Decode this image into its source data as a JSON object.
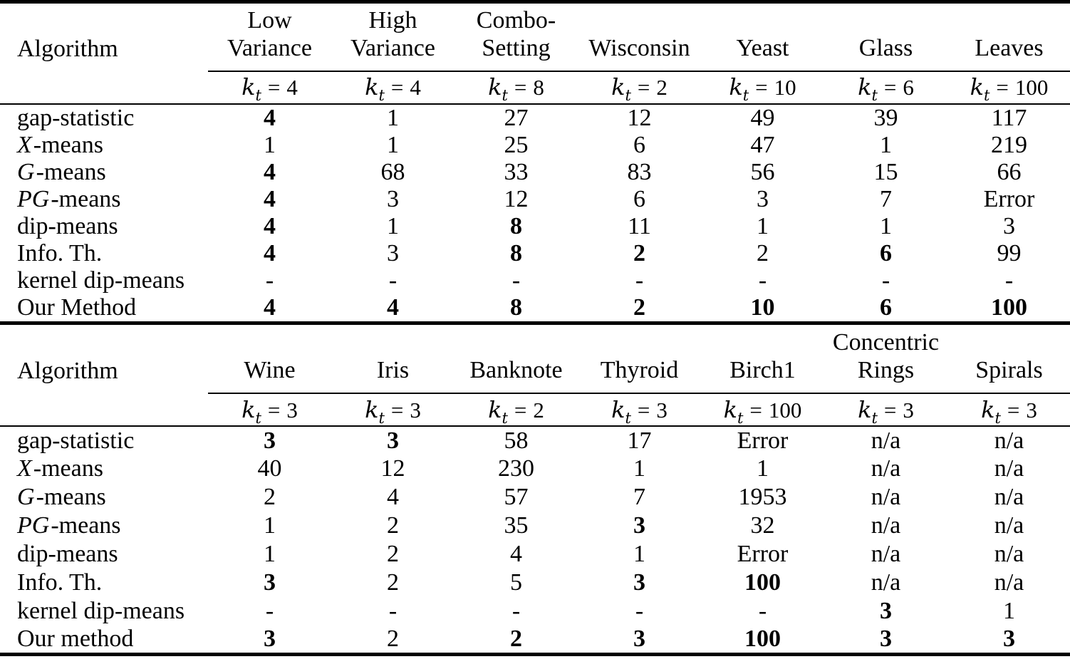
{
  "colors": {
    "text": "#000000",
    "background": "#ffffff",
    "rule": "#000000"
  },
  "math": {
    "k": "k",
    "sub": "t",
    "eq": "="
  },
  "tables": [
    {
      "algorithm_header": "Algorithm",
      "columns": [
        {
          "name": "Low\nVariance",
          "kt": "4"
        },
        {
          "name": "High\nVariance",
          "kt": "4"
        },
        {
          "name": "Combo-\nSetting",
          "kt": "8"
        },
        {
          "name": "Wisconsin",
          "kt": "2"
        },
        {
          "name": "Yeast",
          "kt": "10"
        },
        {
          "name": "Glass",
          "kt": "6"
        },
        {
          "name": "Leaves",
          "kt": "100"
        }
      ],
      "rows": [
        {
          "label_italic": "",
          "label": "gap-statistic",
          "cells": [
            {
              "v": "4",
              "b": true
            },
            {
              "v": "1"
            },
            {
              "v": "27"
            },
            {
              "v": "12"
            },
            {
              "v": "49"
            },
            {
              "v": "39"
            },
            {
              "v": "117"
            }
          ]
        },
        {
          "label_italic": "X",
          "label": "-means",
          "cells": [
            {
              "v": "1"
            },
            {
              "v": "1"
            },
            {
              "v": "25"
            },
            {
              "v": "6"
            },
            {
              "v": "47"
            },
            {
              "v": "1"
            },
            {
              "v": "219"
            }
          ]
        },
        {
          "label_italic": "G",
          "label": "-means",
          "cells": [
            {
              "v": "4",
              "b": true
            },
            {
              "v": "68"
            },
            {
              "v": "33"
            },
            {
              "v": "83"
            },
            {
              "v": "56"
            },
            {
              "v": "15"
            },
            {
              "v": "66"
            }
          ]
        },
        {
          "label_italic": "PG",
          "label": "-means",
          "cells": [
            {
              "v": "4",
              "b": true
            },
            {
              "v": "3"
            },
            {
              "v": "12"
            },
            {
              "v": "6"
            },
            {
              "v": "3"
            },
            {
              "v": "7"
            },
            {
              "v": "Error"
            }
          ]
        },
        {
          "label_italic": "",
          "label": "dip-means",
          "cells": [
            {
              "v": "4",
              "b": true
            },
            {
              "v": "1"
            },
            {
              "v": "8",
              "b": true
            },
            {
              "v": "11"
            },
            {
              "v": "1"
            },
            {
              "v": "1"
            },
            {
              "v": "3"
            }
          ]
        },
        {
          "label_italic": "",
          "label": "Info. Th.",
          "cells": [
            {
              "v": "4",
              "b": true
            },
            {
              "v": "3"
            },
            {
              "v": "8",
              "b": true
            },
            {
              "v": "2",
              "b": true
            },
            {
              "v": "2"
            },
            {
              "v": "6",
              "b": true
            },
            {
              "v": "99"
            }
          ]
        },
        {
          "label_italic": "",
          "label": "kernel dip-means",
          "cells": [
            {
              "v": "-"
            },
            {
              "v": "-"
            },
            {
              "v": "-"
            },
            {
              "v": "-"
            },
            {
              "v": "-"
            },
            {
              "v": "-"
            },
            {
              "v": "-"
            }
          ]
        },
        {
          "label_italic": "",
          "label": "Our Method",
          "cells": [
            {
              "v": "4",
              "b": true
            },
            {
              "v": "4",
              "b": true
            },
            {
              "v": "8",
              "b": true
            },
            {
              "v": "2",
              "b": true
            },
            {
              "v": "10",
              "b": true
            },
            {
              "v": "6",
              "b": true
            },
            {
              "v": "100",
              "b": true
            }
          ]
        }
      ]
    },
    {
      "algorithm_header": "Algorithm",
      "columns": [
        {
          "name": "Wine",
          "kt": "3"
        },
        {
          "name": "Iris",
          "kt": "3"
        },
        {
          "name": "Banknote",
          "kt": "2"
        },
        {
          "name": "Thyroid",
          "kt": "3"
        },
        {
          "name": "Birch1",
          "kt": "100"
        },
        {
          "name": "Concentric\nRings",
          "kt": "3"
        },
        {
          "name": "Spirals",
          "kt": "3"
        }
      ],
      "rows": [
        {
          "label_italic": "",
          "label": "gap-statistic",
          "cells": [
            {
              "v": "3",
              "b": true
            },
            {
              "v": "3",
              "b": true
            },
            {
              "v": "58"
            },
            {
              "v": "17"
            },
            {
              "v": "Error"
            },
            {
              "v": "n/a"
            },
            {
              "v": "n/a"
            }
          ]
        },
        {
          "label_italic": "X",
          "label": "-means",
          "cells": [
            {
              "v": "40"
            },
            {
              "v": "12"
            },
            {
              "v": "230"
            },
            {
              "v": "1"
            },
            {
              "v": "1"
            },
            {
              "v": "n/a"
            },
            {
              "v": "n/a"
            }
          ]
        },
        {
          "label_italic": "G",
          "label": "-means",
          "cells": [
            {
              "v": "2"
            },
            {
              "v": "4"
            },
            {
              "v": "57"
            },
            {
              "v": "7"
            },
            {
              "v": "1953"
            },
            {
              "v": "n/a"
            },
            {
              "v": "n/a"
            }
          ]
        },
        {
          "label_italic": "PG",
          "label": "-means",
          "cells": [
            {
              "v": "1"
            },
            {
              "v": "2"
            },
            {
              "v": "35"
            },
            {
              "v": "3",
              "b": true
            },
            {
              "v": "32"
            },
            {
              "v": "n/a"
            },
            {
              "v": "n/a"
            }
          ]
        },
        {
          "label_italic": "",
          "label": "dip-means",
          "cells": [
            {
              "v": "1"
            },
            {
              "v": "2"
            },
            {
              "v": "4"
            },
            {
              "v": "1"
            },
            {
              "v": "Error"
            },
            {
              "v": "n/a"
            },
            {
              "v": "n/a"
            }
          ]
        },
        {
          "label_italic": "",
          "label": "Info. Th.",
          "cells": [
            {
              "v": "3",
              "b": true
            },
            {
              "v": "2"
            },
            {
              "v": "5"
            },
            {
              "v": "3",
              "b": true
            },
            {
              "v": "100",
              "b": true
            },
            {
              "v": "n/a"
            },
            {
              "v": "n/a"
            }
          ]
        },
        {
          "label_italic": "",
          "label": "kernel dip-means",
          "cells": [
            {
              "v": "-"
            },
            {
              "v": "-"
            },
            {
              "v": "-"
            },
            {
              "v": "-"
            },
            {
              "v": "-"
            },
            {
              "v": "3",
              "b": true
            },
            {
              "v": "1"
            }
          ]
        },
        {
          "label_italic": "",
          "label": "Our method",
          "cells": [
            {
              "v": "3",
              "b": true
            },
            {
              "v": "2"
            },
            {
              "v": "2",
              "b": true
            },
            {
              "v": "3",
              "b": true
            },
            {
              "v": "100",
              "b": true
            },
            {
              "v": "3",
              "b": true
            },
            {
              "v": "3",
              "b": true
            }
          ]
        }
      ]
    }
  ]
}
